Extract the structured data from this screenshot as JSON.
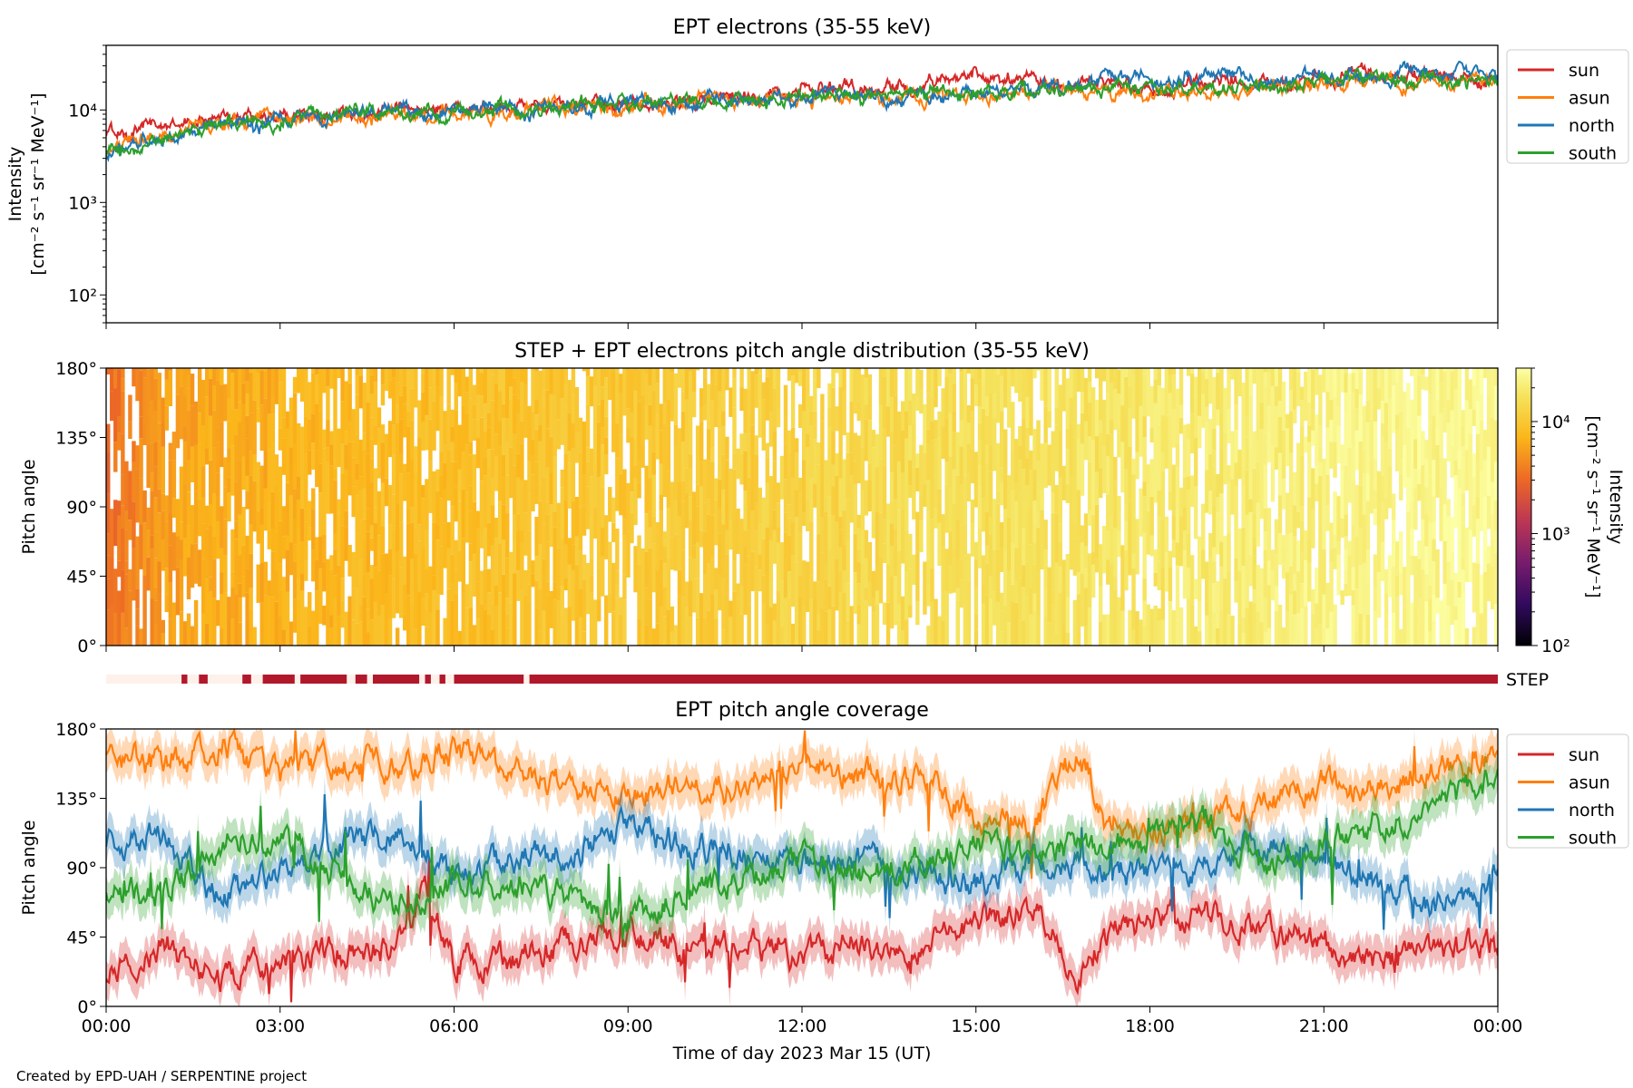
{
  "chart_data": [
    {
      "type": "line",
      "title": "EPT electrons (35-55 keV)",
      "ylabel_lines": [
        "Intensity",
        "[cm⁻² s⁻¹ sr⁻¹ MeV⁻¹]"
      ],
      "yscale": "log",
      "ylim": [
        50,
        50000
      ],
      "yticks": [
        {
          "v": 100,
          "label": "10²"
        },
        {
          "v": 1000,
          "label": "10³"
        },
        {
          "v": 10000,
          "label": "10⁴"
        }
      ],
      "xlim_hours": [
        0,
        24
      ],
      "legend_position": "outside-right-top",
      "series": [
        {
          "name": "sun",
          "color": "#d62728",
          "hours": [
            0,
            2,
            4,
            6,
            8,
            10,
            12,
            14,
            15,
            16,
            17,
            18,
            19,
            20,
            22,
            23,
            24
          ],
          "values": [
            5500,
            8500,
            9500,
            10500,
            11500,
            12500,
            16500,
            19000,
            24000,
            20000,
            21000,
            17000,
            19500,
            21000,
            23000,
            24000,
            22000
          ]
        },
        {
          "name": "asun",
          "color": "#ff7f0e",
          "hours": [
            0,
            2,
            4,
            6,
            8,
            10,
            12,
            14,
            16,
            18,
            20,
            22,
            24
          ],
          "values": [
            3500,
            7000,
            8500,
            9500,
            10500,
            11500,
            12500,
            14000,
            15000,
            16000,
            17500,
            20000,
            20000
          ]
        },
        {
          "name": "north",
          "color": "#1f77b4",
          "hours": [
            0,
            2,
            4,
            6,
            8,
            10,
            12,
            14,
            16,
            17,
            18,
            19,
            20,
            22,
            24
          ],
          "values": [
            3200,
            7000,
            8500,
            10000,
            11000,
            12000,
            13500,
            14500,
            16500,
            20000,
            21000,
            22000,
            21000,
            24000,
            23000
          ]
        },
        {
          "name": "south",
          "color": "#2ca02c",
          "hours": [
            0,
            2,
            4,
            6,
            8,
            10,
            12,
            14,
            16,
            18,
            20,
            22,
            24
          ],
          "values": [
            3300,
            7000,
            8500,
            10000,
            11500,
            12500,
            13500,
            15000,
            16000,
            17000,
            19000,
            21000,
            21000
          ]
        }
      ]
    },
    {
      "type": "heatmap",
      "title": "STEP + EPT electrons pitch angle distribution (35-55 keV)",
      "ylabel": "Pitch angle",
      "ylim": [
        0,
        180
      ],
      "yticks": [
        "0°",
        "45°",
        "90°",
        "135°",
        "180°"
      ],
      "xlim_hours": [
        0,
        24
      ],
      "colorbar": {
        "label": "Intensity [cm⁻² s⁻¹ sr⁻¹ MeV⁻¹]",
        "label_lines": [
          "Intensity",
          "[cm⁻² s⁻¹ sr⁻¹ MeV⁻¹]"
        ],
        "scale": "log",
        "range": [
          100,
          30000
        ],
        "ticks": [
          {
            "v": 100,
            "label": "10²"
          },
          {
            "v": 1000,
            "label": "10³"
          },
          {
            "v": 10000,
            "label": "10⁴"
          }
        ],
        "colormap": "inferno-like"
      },
      "intensity_by_hour": {
        "hours": [
          0,
          1,
          2,
          4,
          6,
          8,
          10,
          12,
          14,
          16,
          18,
          20,
          22,
          24
        ],
        "values": [
          3000,
          5500,
          6500,
          7500,
          8500,
          9500,
          10500,
          12500,
          15000,
          16500,
          18000,
          21000,
          24000,
          26000
        ]
      }
    },
    {
      "type": "bar",
      "label": "STEP",
      "description_hidden": "STEP data availability strip",
      "segments_hours": [
        [
          1.3,
          1.4
        ],
        [
          1.6,
          1.75
        ],
        [
          2.35,
          2.5
        ],
        [
          2.7,
          3.25
        ],
        [
          3.35,
          4.15
        ],
        [
          4.3,
          4.5
        ],
        [
          4.6,
          5.4
        ],
        [
          5.5,
          5.6
        ],
        [
          5.75,
          5.85
        ],
        [
          6.0,
          7.2
        ],
        [
          7.3,
          24.0
        ]
      ],
      "colors": {
        "on": "#b2182b",
        "off": "#fdf1ea"
      }
    },
    {
      "type": "line",
      "title": "EPT pitch angle coverage",
      "ylabel": "Pitch angle",
      "ylim": [
        0,
        180
      ],
      "yticks": [
        "0°",
        "45°",
        "90°",
        "135°",
        "180°"
      ],
      "xlim_hours": [
        0,
        24
      ],
      "xticks": [
        "00:00",
        "03:00",
        "06:00",
        "09:00",
        "12:00",
        "15:00",
        "18:00",
        "21:00",
        "00:00"
      ],
      "xlabel": "Time of day 2023 Mar 15 (UT)",
      "legend_position": "outside-right-top",
      "series": [
        {
          "name": "sun",
          "color": "#d62728",
          "hours": [
            0,
            1,
            2,
            3,
            4,
            5,
            5.5,
            6,
            7,
            8,
            9,
            10,
            11,
            12,
            13,
            14,
            15,
            16,
            16.8,
            17.2,
            18,
            19,
            20,
            21,
            22,
            23,
            24
          ],
          "values": [
            20,
            40,
            15,
            30,
            35,
            40,
            75,
            30,
            30,
            40,
            50,
            35,
            40,
            30,
            40,
            40,
            55,
            65,
            20,
            45,
            55,
            60,
            50,
            40,
            30,
            35,
            40
          ]
        },
        {
          "name": "asun",
          "color": "#ff7f0e",
          "hours": [
            0,
            1,
            2,
            3,
            4,
            5,
            6,
            7,
            8,
            9,
            10,
            11,
            12,
            13,
            14,
            15,
            16,
            16.8,
            17.2,
            18,
            19,
            20,
            21,
            22,
            23,
            24
          ],
          "values": [
            165,
            155,
            170,
            150,
            160,
            155,
            165,
            150,
            145,
            135,
            145,
            140,
            160,
            150,
            145,
            125,
            115,
            170,
            120,
            115,
            120,
            130,
            145,
            145,
            155,
            160
          ]
        },
        {
          "name": "north",
          "color": "#1f77b4",
          "hours": [
            0,
            1,
            2,
            3,
            4,
            5,
            6,
            7,
            8,
            9,
            10,
            11,
            12,
            13,
            14,
            15,
            16,
            17,
            18,
            19,
            20,
            21,
            22,
            23,
            24
          ],
          "values": [
            105,
            110,
            70,
            90,
            105,
            110,
            85,
            95,
            100,
            120,
            105,
            100,
            90,
            95,
            85,
            80,
            95,
            90,
            85,
            90,
            105,
            95,
            80,
            65,
            80
          ]
        },
        {
          "name": "south",
          "color": "#2ca02c",
          "hours": [
            0,
            1,
            2,
            3,
            4,
            5,
            6,
            7,
            8,
            9,
            10,
            11,
            12,
            13,
            14,
            15,
            16,
            17,
            18,
            19,
            20,
            21,
            22,
            23,
            24
          ],
          "values": [
            75,
            70,
            110,
            110,
            85,
            65,
            80,
            80,
            70,
            55,
            75,
            80,
            95,
            85,
            95,
            105,
            100,
            100,
            110,
            120,
            90,
            110,
            120,
            130,
            150
          ]
        }
      ]
    }
  ],
  "footer": {
    "credit": "Created by EPD-UAH / SERPENTINE project"
  }
}
